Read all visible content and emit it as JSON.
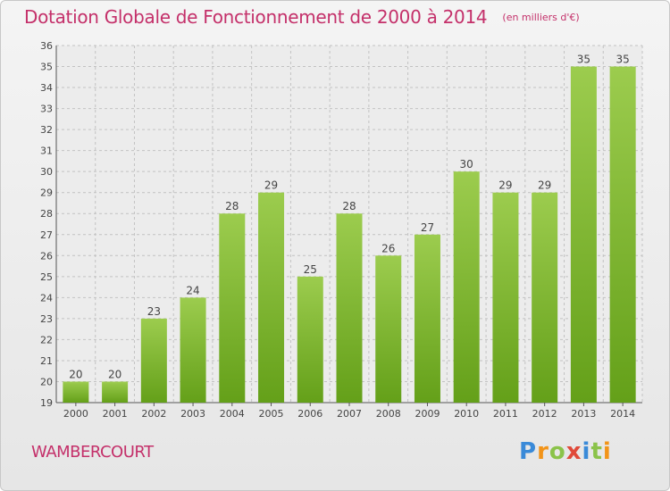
{
  "header": {
    "title": "Dotation Globale de Fonctionnement de 2000 à 2014",
    "subtitle": "(en milliers d'€)"
  },
  "footer": {
    "commune": "WAMBERCOURT",
    "brand": "Proxiti"
  },
  "colors": {
    "title": "#c4306a",
    "bar_light": "#9ccc4e",
    "bar_dark": "#64a019",
    "brand_letters": [
      "#3a8ad8",
      "#f29419",
      "#8bc34a",
      "#e04a3a",
      "#3a8ad8",
      "#8bc34a",
      "#f29419"
    ]
  },
  "chart_data": {
    "type": "bar",
    "title": "Dotation Globale de Fonctionnement de 2000 à 2014",
    "subtitle": "(en milliers d'€)",
    "categories": [
      "2000",
      "2001",
      "2002",
      "2003",
      "2004",
      "2005",
      "2006",
      "2007",
      "2008",
      "2009",
      "2010",
      "2011",
      "2012",
      "2013",
      "2014"
    ],
    "values": [
      20,
      20,
      23,
      24,
      28,
      29,
      25,
      28,
      26,
      27,
      30,
      29,
      29,
      35,
      35
    ],
    "ylim": [
      19,
      36
    ],
    "yticks": [
      19,
      20,
      21,
      22,
      23,
      24,
      25,
      26,
      27,
      28,
      29,
      30,
      31,
      32,
      33,
      34,
      35,
      36
    ],
    "grid": true,
    "data_labels": true,
    "legend": "none"
  }
}
